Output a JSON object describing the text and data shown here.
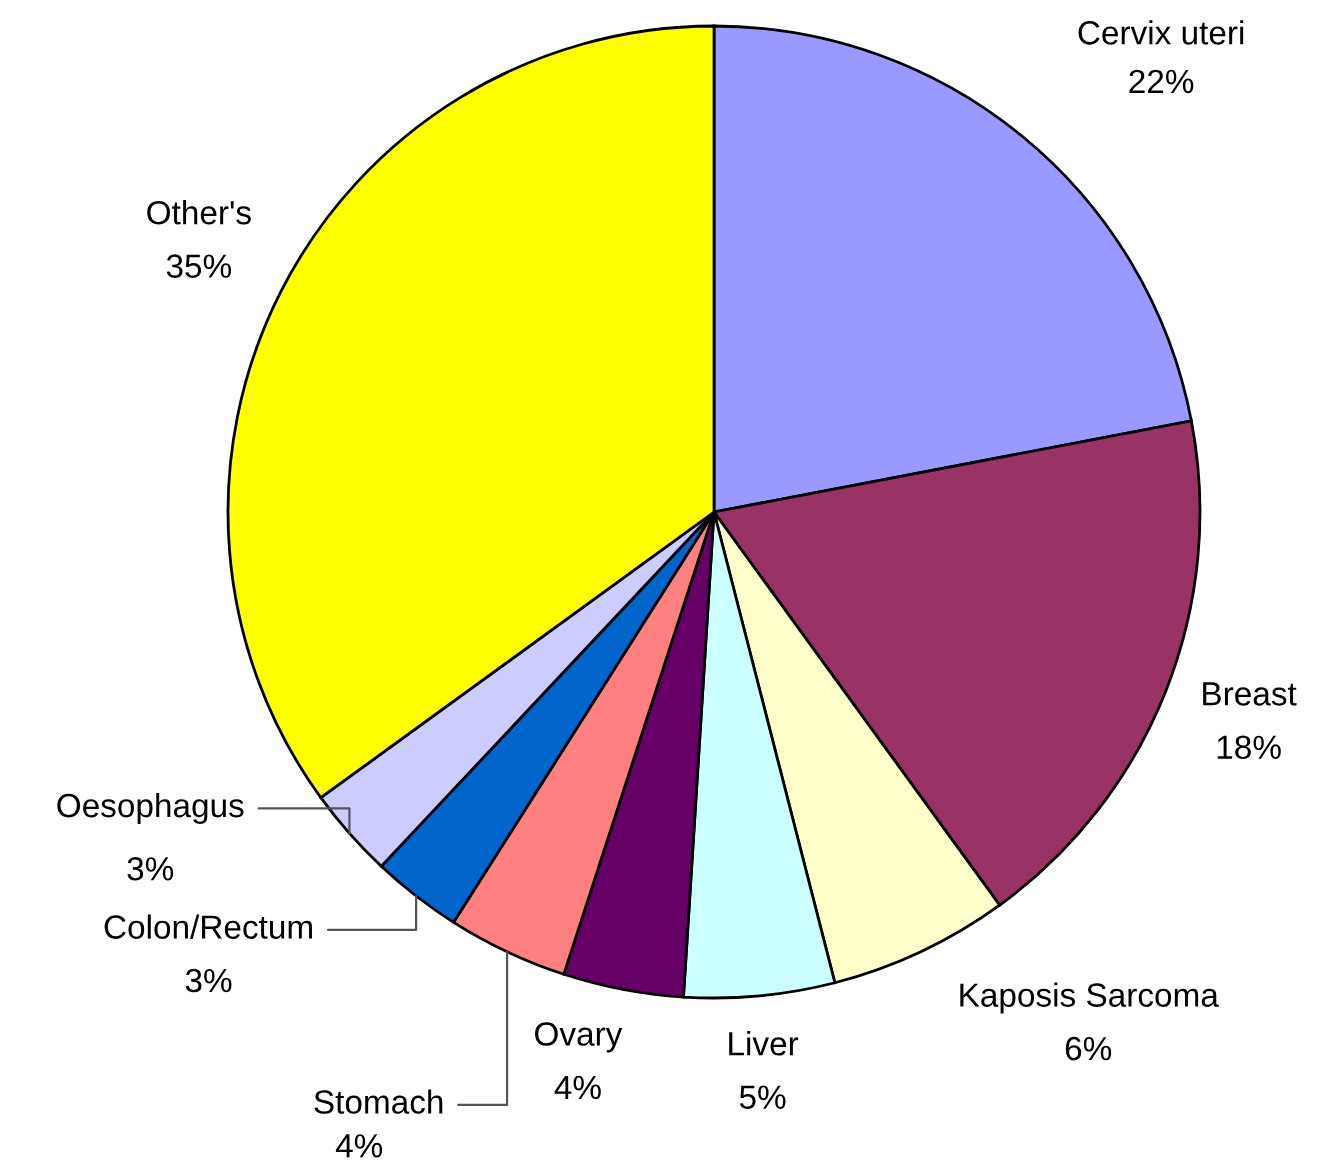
{
  "chart_data": {
    "type": "pie",
    "categories": [
      "Cervix uteri",
      "Breast",
      "Kaposis Sarcoma",
      "Liver",
      "Ovary",
      "Stomach",
      "Colon/Rectum",
      "Oesophagus",
      "Other's"
    ],
    "values": [
      22,
      18,
      6,
      5,
      4,
      4,
      3,
      3,
      35
    ],
    "colors": [
      "#9999ff",
      "#993366",
      "#ffffcc",
      "#ccffff",
      "#660066",
      "#ff8080",
      "#0066cc",
      "#ccccff",
      "#ffff00"
    ],
    "value_labels": [
      "22%",
      "18%",
      "6%",
      "5%",
      "4%",
      "4%",
      "3%",
      "3%",
      "35%"
    ],
    "legend": false
  }
}
